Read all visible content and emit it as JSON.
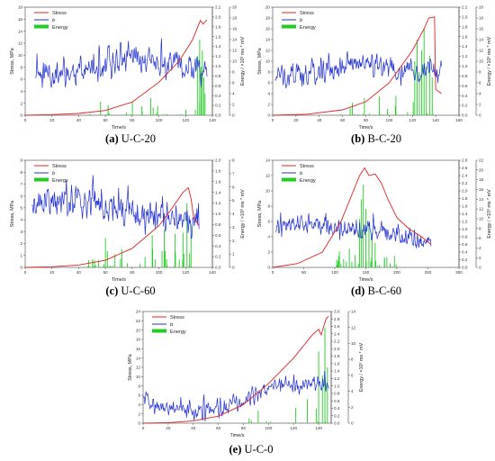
{
  "chart_data": [
    {
      "type": "line",
      "caption_letter": "(a)",
      "caption_text": "U-C-20",
      "xlabel": "Time/s",
      "ylabel": "Stress, MPa",
      "y2label": "Energy / ×10³ ms * mV",
      "legend": [
        "Stress",
        "b",
        "Energy"
      ],
      "xlim": [
        0,
        140
      ],
      "xticks": [
        0,
        20,
        40,
        60,
        80,
        100,
        120,
        140
      ],
      "ylim": [
        0,
        18
      ],
      "yticks": [
        0,
        2,
        4,
        6,
        8,
        10,
        12,
        14,
        16,
        18
      ],
      "blim": [
        0,
        2.2
      ],
      "bticks": [
        "0.0",
        "0.2",
        "0.4",
        "0.6",
        "0.8",
        "1.0",
        "1.2",
        "1.4",
        "1.6",
        "1.8",
        "2.0",
        "2.2"
      ],
      "elim": [
        0,
        20
      ],
      "eticks": [
        "0",
        "2",
        "4",
        "6",
        "8",
        "10",
        "12",
        "14",
        "16",
        "18",
        "20"
      ],
      "stress": [
        [
          0,
          0
        ],
        [
          20,
          0.1
        ],
        [
          40,
          0.3
        ],
        [
          60,
          0.8
        ],
        [
          80,
          2.2
        ],
        [
          100,
          5.5
        ],
        [
          115,
          9
        ],
        [
          125,
          12.5
        ],
        [
          131,
          15.8
        ],
        [
          133,
          15.2
        ],
        [
          136,
          15.9
        ]
      ],
      "b_seed": 11,
      "b_range": [
        8,
        136
      ],
      "b_base": [
        [
          8,
          0.85
        ],
        [
          30,
          0.85
        ],
        [
          60,
          0.95
        ],
        [
          80,
          1.2
        ],
        [
          95,
          1.05
        ],
        [
          110,
          0.95
        ],
        [
          125,
          0.9
        ],
        [
          136,
          0.85
        ]
      ],
      "b_amp": 0.35,
      "e_seed": 21,
      "e_bars": 28,
      "e_range": [
        45,
        134
      ],
      "e_major": [
        [
          129,
          11
        ],
        [
          130.5,
          14
        ],
        [
          131.5,
          9
        ],
        [
          132.5,
          12
        ],
        [
          133.5,
          7
        ],
        [
          134.5,
          4
        ]
      ]
    },
    {
      "type": "line",
      "caption_letter": "(b)",
      "caption_text": "B-C-20",
      "xlabel": "Time/s",
      "ylabel": "Stress, MPa",
      "y2label": "Energy / ×10³ ms * mV",
      "legend": [
        "Stress",
        "b",
        "Energy"
      ],
      "xlim": [
        0,
        160
      ],
      "xticks": [
        0,
        20,
        40,
        60,
        80,
        100,
        120,
        140,
        160
      ],
      "ylim": [
        0,
        20
      ],
      "yticks": [
        0,
        2,
        4,
        6,
        8,
        10,
        12,
        14,
        16,
        18,
        20
      ],
      "blim": [
        0,
        2.2
      ],
      "bticks": [
        "0.0",
        "0.2",
        "0.4",
        "0.6",
        "0.8",
        "1.0",
        "1.2",
        "1.4",
        "1.6",
        "1.8",
        "2.0",
        "2.2"
      ],
      "elim": [
        0,
        20
      ],
      "eticks": [
        "0",
        "2",
        "4",
        "6",
        "8",
        "10",
        "12",
        "14",
        "16",
        "18",
        "20"
      ],
      "stress": [
        [
          0,
          0
        ],
        [
          30,
          0.2
        ],
        [
          60,
          1
        ],
        [
          80,
          2.5
        ],
        [
          100,
          6
        ],
        [
          120,
          12
        ],
        [
          130,
          16
        ],
        [
          134,
          18
        ],
        [
          139,
          18.2
        ],
        [
          140,
          4.8
        ],
        [
          145,
          4
        ]
      ],
      "b_seed": 33,
      "b_range": [
        2,
        145
      ],
      "b_base": [
        [
          2,
          0.8
        ],
        [
          40,
          0.85
        ],
        [
          60,
          1.0
        ],
        [
          75,
          1.1
        ],
        [
          95,
          0.95
        ],
        [
          115,
          0.9
        ],
        [
          145,
          0.9
        ]
      ],
      "b_amp": 0.28,
      "e_seed": 44,
      "e_bars": 26,
      "e_range": [
        50,
        143
      ],
      "e_major": [
        [
          122,
          10
        ],
        [
          124,
          14
        ],
        [
          126,
          8
        ],
        [
          128,
          12
        ],
        [
          130,
          16
        ],
        [
          132,
          9
        ],
        [
          135,
          11
        ],
        [
          137,
          7
        ]
      ]
    },
    {
      "type": "line",
      "caption_letter": "(c)",
      "caption_text": "U-C-60",
      "xlabel": "Time/s",
      "ylabel": "Stress, MPa",
      "y2label": "Energy / ×10³ ms * mV",
      "legend": [
        "Stress",
        "b",
        "Energy"
      ],
      "xlim": [
        0,
        140
      ],
      "xticks": [
        0,
        20,
        40,
        60,
        80,
        100,
        120,
        140
      ],
      "ylim": [
        0,
        9
      ],
      "yticks": [
        0,
        1,
        2,
        3,
        4,
        5,
        6,
        7,
        8,
        9
      ],
      "blim": [
        0,
        2.0
      ],
      "bticks": [
        "0.0",
        "0.2",
        "0.4",
        "0.6",
        "0.8",
        "1.0",
        "1.2",
        "1.4",
        "1.6",
        "1.8",
        "2.0"
      ],
      "elim": [
        0,
        8
      ],
      "eticks": [
        "0",
        "1",
        "2",
        "3",
        "4",
        "5",
        "6",
        "7",
        "8"
      ],
      "stress": [
        [
          0,
          0
        ],
        [
          20,
          0.05
        ],
        [
          40,
          0.2
        ],
        [
          60,
          0.6
        ],
        [
          80,
          1.6
        ],
        [
          100,
          3.5
        ],
        [
          110,
          5
        ],
        [
          118,
          6.3
        ],
        [
          122,
          6.7
        ],
        [
          124,
          5.8
        ],
        [
          126,
          4.2
        ],
        [
          130,
          3.5
        ]
      ],
      "b_seed": 55,
      "b_range": [
        5,
        130
      ],
      "b_base": [
        [
          5,
          1.25
        ],
        [
          20,
          1.25
        ],
        [
          40,
          1.2
        ],
        [
          60,
          1.15
        ],
        [
          80,
          1.05
        ],
        [
          100,
          0.95
        ],
        [
          115,
          0.85
        ],
        [
          130,
          0.8
        ]
      ],
      "b_amp": 0.35,
      "e_seed": 66,
      "e_bars": 45,
      "e_range": [
        40,
        127
      ],
      "e_major": [
        [
          60,
          2.2
        ],
        [
          95,
          2.4
        ],
        [
          104,
          2.8
        ],
        [
          112,
          2.5
        ],
        [
          118,
          2.6
        ],
        [
          121,
          4.8
        ],
        [
          124,
          3.2
        ]
      ]
    },
    {
      "type": "line",
      "caption_letter": "(d)",
      "caption_text": "B-C-60",
      "xlabel": "Time/s",
      "ylabel": "Stress, MPa",
      "y2label": "Energy / ×10³ ms * mV",
      "legend": [
        "Stress",
        "b",
        "Energy"
      ],
      "xlim": [
        0,
        300
      ],
      "xticks": [
        0,
        50,
        100,
        150,
        200,
        250,
        300
      ],
      "ylim": [
        0,
        14
      ],
      "yticks": [
        0,
        2,
        4,
        6,
        8,
        10,
        12,
        14
      ],
      "blim": [
        0,
        2.8
      ],
      "bticks": [
        "0.0",
        "0.2",
        "0.4",
        "0.6",
        "0.8",
        "1.0",
        "1.2",
        "1.4",
        "1.6",
        "1.8",
        "2.0",
        "2.2",
        "2.4",
        "2.6",
        "2.8"
      ],
      "elim": [
        0,
        22
      ],
      "eticks": [
        "0",
        "2",
        "4",
        "6",
        "8",
        "10",
        "12",
        "14",
        "16",
        "18",
        "20",
        "22"
      ],
      "stress": [
        [
          0,
          0
        ],
        [
          40,
          0.5
        ],
        [
          80,
          2
        ],
        [
          110,
          6
        ],
        [
          130,
          10
        ],
        [
          140,
          12
        ],
        [
          148,
          13
        ],
        [
          155,
          12
        ],
        [
          165,
          12.2
        ],
        [
          175,
          11
        ],
        [
          185,
          9
        ],
        [
          200,
          6.5
        ],
        [
          220,
          5
        ],
        [
          240,
          4
        ],
        [
          255,
          3
        ]
      ],
      "b_seed": 77,
      "b_range": [
        5,
        255
      ],
      "b_base": [
        [
          5,
          1.0
        ],
        [
          30,
          1.1
        ],
        [
          60,
          1.1
        ],
        [
          100,
          1.0
        ],
        [
          150,
          0.95
        ],
        [
          200,
          0.85
        ],
        [
          255,
          0.6
        ]
      ],
      "b_amp": 0.3,
      "e_seed": 88,
      "e_bars": 40,
      "e_range": [
        100,
        200
      ],
      "e_major": [
        [
          140,
          10
        ],
        [
          143,
          14
        ],
        [
          146,
          17
        ],
        [
          150,
          12
        ],
        [
          155,
          9
        ],
        [
          160,
          7
        ],
        [
          165,
          5
        ]
      ]
    },
    {
      "type": "line",
      "caption_letter": "(e)",
      "caption_text": "U-C-0",
      "xlabel": "Time/s",
      "ylabel": "Stress, MPa",
      "y2label": "Energy / ×10³ ms * mV",
      "legend": [
        "Stress",
        "b",
        "Energy"
      ],
      "xlim": [
        0,
        150
      ],
      "xticks": [
        0,
        20,
        40,
        60,
        80,
        100,
        120,
        140
      ],
      "ylim": [
        0,
        24
      ],
      "yticks": [
        0,
        2,
        4,
        6,
        8,
        10,
        12,
        14,
        16,
        18,
        20,
        22,
        24
      ],
      "blim": [
        0,
        3.0
      ],
      "bticks": [
        "0.0",
        "0.2",
        "0.4",
        "0.6",
        "0.8",
        "1.0",
        "1.2",
        "1.4",
        "1.6",
        "1.8",
        "2.0",
        "2.2",
        "2.4",
        "2.6",
        "2.8",
        "3.0"
      ],
      "elim": [
        0,
        14
      ],
      "eticks": [
        "0",
        "2",
        "4",
        "6",
        "8",
        "10",
        "12",
        "14"
      ],
      "stress": [
        [
          0,
          0
        ],
        [
          20,
          0.1
        ],
        [
          40,
          0.5
        ],
        [
          60,
          1.5
        ],
        [
          80,
          4
        ],
        [
          100,
          8.5
        ],
        [
          120,
          14
        ],
        [
          135,
          19
        ],
        [
          140,
          20.2
        ],
        [
          142,
          19
        ],
        [
          146,
          22.5
        ],
        [
          148,
          23
        ]
      ],
      "b_seed": 99,
      "b_range": [
        0,
        148
      ],
      "b_base": [
        [
          0,
          0.75
        ],
        [
          10,
          0.45
        ],
        [
          40,
          0.35
        ],
        [
          60,
          0.4
        ],
        [
          80,
          0.55
        ],
        [
          100,
          0.9
        ],
        [
          115,
          1.1
        ],
        [
          130,
          1.0
        ],
        [
          140,
          1.1
        ],
        [
          148,
          1.0
        ]
      ],
      "b_amp": 0.3,
      "e_seed": 101,
      "e_bars": 14,
      "e_range": [
        80,
        147
      ],
      "e_major": [
        [
          131,
          3
        ],
        [
          140,
          9
        ],
        [
          143,
          6
        ],
        [
          145,
          12
        ],
        [
          147,
          7
        ]
      ]
    }
  ]
}
